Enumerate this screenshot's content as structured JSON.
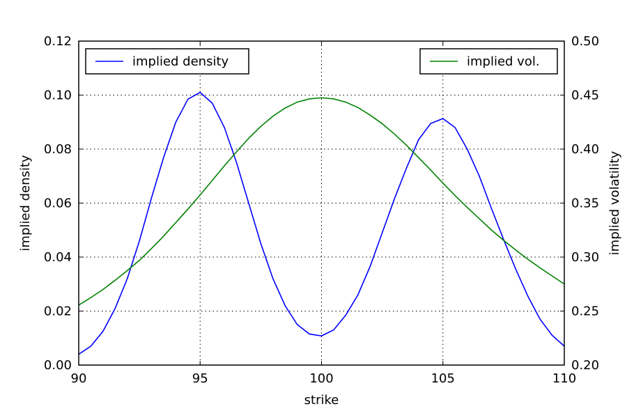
{
  "chart_data": {
    "type": "line",
    "title": "",
    "xlabel": "strike",
    "ylabel": "implied density",
    "ylabel_right": "implied volatility",
    "xlim": [
      90,
      110
    ],
    "ylim": [
      0,
      0.12
    ],
    "ylim_right": [
      0.2,
      0.5
    ],
    "x_ticks": [
      90,
      95,
      100,
      105,
      110
    ],
    "y_ticks": [
      0,
      0.02,
      0.04,
      0.06,
      0.08,
      0.1,
      0.12
    ],
    "y_tick_labels": [
      "0.00",
      "0.02",
      "0.04",
      "0.06",
      "0.08",
      "0.10",
      "0.12"
    ],
    "y_ticks_right": [
      0.2,
      0.25,
      0.3,
      0.35,
      0.4,
      0.45,
      0.5
    ],
    "y_tick_labels_right": [
      "0.20",
      "0.25",
      "0.30",
      "0.35",
      "0.40",
      "0.45",
      "0.50"
    ],
    "grid": true,
    "x": [
      90,
      90.5,
      91,
      91.5,
      92,
      92.5,
      93,
      93.5,
      94,
      94.5,
      95,
      95.5,
      96,
      96.5,
      97,
      97.5,
      98,
      98.5,
      99,
      99.5,
      100,
      100.5,
      101,
      101.5,
      102,
      102.5,
      103,
      103.5,
      104,
      104.5,
      105,
      105.5,
      106,
      106.5,
      107,
      107.5,
      108,
      108.5,
      109,
      109.5,
      110
    ],
    "series": [
      {
        "name": "implied density",
        "axis": "left",
        "color": "#0000ff",
        "legend_position": "upper left",
        "values": [
          0.004,
          0.007,
          0.0125,
          0.021,
          0.032,
          0.046,
          0.062,
          0.077,
          0.09,
          0.0985,
          0.101,
          0.097,
          0.088,
          0.075,
          0.06,
          0.045,
          0.032,
          0.022,
          0.015,
          0.0115,
          0.0108,
          0.013,
          0.0185,
          0.026,
          0.0365,
          0.049,
          0.0615,
          0.073,
          0.0835,
          0.0895,
          0.0913,
          0.088,
          0.08,
          0.07,
          0.058,
          0.0465,
          0.0355,
          0.0255,
          0.017,
          0.011,
          0.007
        ]
      },
      {
        "name": "implied vol.",
        "axis": "right",
        "color": "#008000",
        "legend_position": "upper right",
        "values": [
          0.2555,
          0.2625,
          0.27,
          0.2785,
          0.2875,
          0.297,
          0.308,
          0.3195,
          0.332,
          0.3445,
          0.3575,
          0.371,
          0.3845,
          0.3975,
          0.41,
          0.421,
          0.4305,
          0.438,
          0.4435,
          0.4465,
          0.4475,
          0.4465,
          0.4435,
          0.4385,
          0.4315,
          0.4235,
          0.414,
          0.4035,
          0.392,
          0.3805,
          0.3685,
          0.357,
          0.346,
          0.3355,
          0.325,
          0.3155,
          0.3065,
          0.298,
          0.29,
          0.2825,
          0.275
        ]
      }
    ]
  }
}
